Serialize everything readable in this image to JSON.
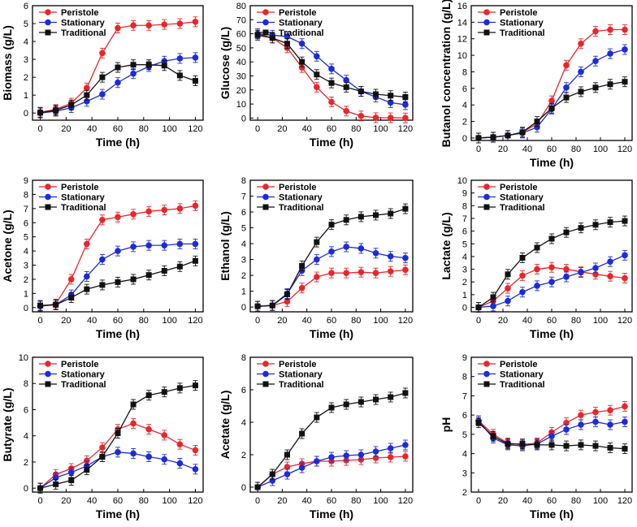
{
  "colors": {
    "Peristole": "#e8262b",
    "Stationary": "#1d2bd8",
    "Traditional": "#111111"
  },
  "chart_data": [
    {
      "type": "line",
      "ylabel": "Biomass (g/L)",
      "xlabel": "Time (h)",
      "ylim": [
        -0.4,
        6
      ],
      "yticks": [
        "0",
        "1",
        "2",
        "3",
        "4",
        "5",
        "6"
      ],
      "ytickvals": [
        0,
        1,
        2,
        3,
        4,
        5,
        6
      ],
      "xticks": [
        "0",
        "20",
        "40",
        "60",
        "80",
        "100",
        "120"
      ],
      "xtickvals": [
        0,
        20,
        40,
        60,
        80,
        100,
        120
      ],
      "xlim": [
        -6,
        126
      ],
      "legend": [
        "Peristole",
        "Stationary",
        "Traditional"
      ],
      "x": [
        0,
        12,
        24,
        36,
        48,
        60,
        72,
        84,
        96,
        108,
        120
      ],
      "series": [
        {
          "name": "Peristole",
          "values": [
            0.05,
            0.2,
            0.55,
            1.4,
            3.35,
            4.75,
            4.9,
            4.9,
            4.95,
            5.0,
            5.1
          ]
        },
        {
          "name": "Stationary",
          "values": [
            0.0,
            0.1,
            0.3,
            0.65,
            1.05,
            1.7,
            2.2,
            2.6,
            2.9,
            3.05,
            3.1
          ]
        },
        {
          "name": "Traditional",
          "values": [
            0.02,
            0.15,
            0.45,
            1.0,
            2.0,
            2.55,
            2.7,
            2.7,
            2.65,
            2.1,
            1.8
          ]
        }
      ]
    },
    {
      "type": "line",
      "ylabel": "Glucose (g/L)",
      "xlabel": "Time (h)",
      "ylim": [
        -1.5,
        80
      ],
      "yticks": [
        "0",
        "10",
        "20",
        "30",
        "40",
        "50",
        "60",
        "70",
        "80"
      ],
      "ytickvals": [
        0,
        10,
        20,
        30,
        40,
        50,
        60,
        70,
        80
      ],
      "xticks": [
        "0",
        "20",
        "40",
        "60",
        "80",
        "100",
        "120"
      ],
      "xtickvals": [
        0,
        20,
        40,
        60,
        80,
        100,
        120
      ],
      "xlim": [
        -6,
        126
      ],
      "legend": [
        "Peristole",
        "Stationary",
        "Traditional"
      ],
      "x": [
        0,
        12,
        24,
        36,
        48,
        60,
        72,
        84,
        96,
        108,
        120
      ],
      "series": [
        {
          "name": "Peristole",
          "values": [
            60,
            57,
            50,
            36,
            22,
            11.5,
            5,
            1.5,
            0.3,
            0.2,
            0.1
          ]
        },
        {
          "name": "Stationary",
          "values": [
            60,
            59,
            58,
            53,
            44,
            35,
            27,
            19,
            15,
            11,
            9.5
          ]
        },
        {
          "name": "Traditional",
          "values": [
            59,
            57,
            53,
            40,
            31,
            25,
            22,
            19,
            17,
            16,
            15
          ]
        }
      ]
    },
    {
      "type": "line",
      "ylabel": "Butanol concentration (g/L)",
      "xlabel": "Time (h)",
      "ylim": [
        -0.3,
        16
      ],
      "yticks": [
        "0",
        "2",
        "4",
        "6",
        "8",
        "10",
        "12",
        "14",
        "16"
      ],
      "ytickvals": [
        0,
        2,
        4,
        6,
        8,
        10,
        12,
        14,
        16
      ],
      "xticks": [
        "0",
        "20",
        "40",
        "60",
        "80",
        "100",
        "120"
      ],
      "xtickvals": [
        0,
        20,
        40,
        60,
        80,
        100,
        120
      ],
      "xlim": [
        -6,
        126
      ],
      "legend": [
        "Peristole",
        "Stationary",
        "Traditional"
      ],
      "x": [
        0,
        12,
        24,
        36,
        48,
        60,
        72,
        84,
        96,
        108,
        120
      ],
      "series": [
        {
          "name": "Peristole",
          "values": [
            0,
            0.1,
            0.3,
            0.7,
            1.7,
            4.5,
            8.8,
            11.4,
            12.9,
            13.1,
            13.1
          ]
        },
        {
          "name": "Stationary",
          "values": [
            0,
            0.1,
            0.3,
            0.6,
            1.3,
            3.5,
            6.1,
            8.0,
            9.3,
            10.2,
            10.7
          ]
        },
        {
          "name": "Traditional",
          "values": [
            0,
            0.1,
            0.3,
            0.7,
            2.0,
            3.6,
            4.9,
            5.6,
            6.1,
            6.5,
            6.8
          ]
        }
      ]
    },
    {
      "type": "line",
      "ylabel": "Acetone (g/L)",
      "xlabel": "Time (h)",
      "ylim": [
        -0.3,
        9
      ],
      "yticks": [
        "0",
        "1",
        "2",
        "3",
        "4",
        "5",
        "6",
        "7",
        "8",
        "9"
      ],
      "ytickvals": [
        0,
        1,
        2,
        3,
        4,
        5,
        6,
        7,
        8,
        9
      ],
      "xticks": [
        "0",
        "20",
        "40",
        "60",
        "80",
        "100",
        "120"
      ],
      "xtickvals": [
        0,
        20,
        40,
        60,
        80,
        100,
        120
      ],
      "xlim": [
        -6,
        126
      ],
      "legend": [
        "Peristole",
        "Stationary",
        "Traditional"
      ],
      "x": [
        0,
        12,
        24,
        36,
        48,
        60,
        72,
        84,
        96,
        108,
        120
      ],
      "series": [
        {
          "name": "Peristole",
          "values": [
            0.1,
            0.25,
            2.0,
            4.5,
            6.2,
            6.4,
            6.6,
            6.8,
            6.9,
            7.0,
            7.2
          ]
        },
        {
          "name": "Stationary",
          "values": [
            0.1,
            0.2,
            0.9,
            2.2,
            3.4,
            4.0,
            4.3,
            4.4,
            4.4,
            4.5,
            4.5
          ]
        },
        {
          "name": "Traditional",
          "values": [
            0.15,
            0.2,
            0.7,
            1.3,
            1.6,
            1.8,
            2.0,
            2.3,
            2.6,
            2.9,
            3.3
          ]
        }
      ]
    },
    {
      "type": "line",
      "ylabel": "Ethanol (g/L)",
      "xlabel": "Time (h)",
      "ylim": [
        -0.3,
        8
      ],
      "yticks": [
        "0",
        "1",
        "2",
        "3",
        "4",
        "5",
        "6",
        "7",
        "8"
      ],
      "ytickvals": [
        0,
        1,
        2,
        3,
        4,
        5,
        6,
        7,
        8
      ],
      "xticks": [
        "0",
        "20",
        "40",
        "60",
        "80",
        "100",
        "120"
      ],
      "xtickvals": [
        0,
        20,
        40,
        60,
        80,
        100,
        120
      ],
      "xlim": [
        -6,
        126
      ],
      "legend": [
        "Peristole",
        "Stationary",
        "Traditional"
      ],
      "x": [
        0,
        12,
        24,
        36,
        48,
        60,
        72,
        84,
        96,
        108,
        120
      ],
      "series": [
        {
          "name": "Peristole",
          "values": [
            0.05,
            0.1,
            0.35,
            1.2,
            1.9,
            2.15,
            2.15,
            2.2,
            2.15,
            2.25,
            2.35
          ]
        },
        {
          "name": "Stationary",
          "values": [
            0.05,
            0.1,
            0.85,
            2.3,
            3.0,
            3.5,
            3.8,
            3.7,
            3.4,
            3.2,
            3.1
          ]
        },
        {
          "name": "Traditional",
          "values": [
            0.05,
            0.1,
            0.8,
            2.6,
            4.1,
            5.2,
            5.5,
            5.7,
            5.8,
            5.9,
            6.2
          ]
        }
      ]
    },
    {
      "type": "line",
      "ylabel": "Lactate (g/L)",
      "xlabel": "Time (h)",
      "ylim": [
        -0.35,
        10
      ],
      "yticks": [
        "0",
        "1",
        "2",
        "3",
        "4",
        "5",
        "6",
        "7",
        "8",
        "9",
        "10"
      ],
      "ytickvals": [
        0,
        1,
        2,
        3,
        4,
        5,
        6,
        7,
        8,
        9,
        10
      ],
      "xticks": [
        "0",
        "20",
        "40",
        "60",
        "80",
        "100",
        "120"
      ],
      "xtickvals": [
        0,
        20,
        40,
        60,
        80,
        100,
        120
      ],
      "xlim": [
        -6,
        126
      ],
      "legend": [
        "Peristole",
        "Stationary",
        "Traditional"
      ],
      "x": [
        0,
        12,
        24,
        36,
        48,
        60,
        72,
        84,
        96,
        108,
        120
      ],
      "series": [
        {
          "name": "Peristole",
          "values": [
            0.0,
            0.5,
            1.5,
            2.5,
            3.0,
            3.15,
            3.0,
            2.8,
            2.6,
            2.45,
            2.3
          ]
        },
        {
          "name": "Stationary",
          "values": [
            0.0,
            0.1,
            0.5,
            1.2,
            1.7,
            2.0,
            2.4,
            2.75,
            3.1,
            3.6,
            4.1
          ]
        },
        {
          "name": "Traditional",
          "values": [
            0.0,
            0.8,
            2.6,
            3.9,
            4.7,
            5.4,
            5.9,
            6.25,
            6.5,
            6.7,
            6.8
          ]
        }
      ]
    },
    {
      "type": "line",
      "ylabel": "Butyrate (g/L)",
      "xlabel": "Time (h)",
      "ylim": [
        -0.3,
        10
      ],
      "yticks": [
        "0",
        "2",
        "4",
        "6",
        "8",
        "10"
      ],
      "ytickvals": [
        0,
        2,
        4,
        6,
        8,
        10
      ],
      "xticks": [
        "0",
        "20",
        "40",
        "60",
        "80",
        "100",
        "120"
      ],
      "xtickvals": [
        0,
        20,
        40,
        60,
        80,
        100,
        120
      ],
      "xlim": [
        -6,
        126
      ],
      "legend": [
        "Peristole",
        "Stationary",
        "Traditional"
      ],
      "x": [
        0,
        12,
        24,
        36,
        48,
        60,
        72,
        84,
        96,
        108,
        120
      ],
      "series": [
        {
          "name": "Peristole",
          "values": [
            0.0,
            1.05,
            1.5,
            2.1,
            3.1,
            4.5,
            4.95,
            4.5,
            4.05,
            3.35,
            2.9
          ]
        },
        {
          "name": "Stationary",
          "values": [
            0.0,
            0.8,
            1.2,
            1.7,
            2.4,
            2.75,
            2.65,
            2.4,
            2.2,
            1.9,
            1.45
          ]
        },
        {
          "name": "Traditional",
          "values": [
            0.0,
            0.3,
            0.6,
            1.4,
            2.4,
            4.2,
            6.4,
            7.1,
            7.35,
            7.65,
            7.85
          ]
        }
      ]
    },
    {
      "type": "line",
      "ylabel": "Acetate (g/L)",
      "xlabel": "Time (h)",
      "ylim": [
        -0.3,
        8
      ],
      "yticks": [
        "0",
        "2",
        "4",
        "6",
        "8"
      ],
      "ytickvals": [
        0,
        2,
        4,
        6,
        8
      ],
      "xticks": [
        "0",
        "20",
        "40",
        "60",
        "80",
        "100",
        "120"
      ],
      "xtickvals": [
        0,
        20,
        40,
        60,
        80,
        100,
        120
      ],
      "xlim": [
        -6,
        126
      ],
      "legend": [
        "Peristole",
        "Stationary",
        "Traditional"
      ],
      "x": [
        0,
        12,
        24,
        36,
        48,
        60,
        72,
        84,
        96,
        108,
        120
      ],
      "series": [
        {
          "name": "Peristole",
          "values": [
            0.0,
            0.8,
            1.25,
            1.45,
            1.6,
            1.6,
            1.65,
            1.7,
            1.8,
            1.85,
            1.9
          ]
        },
        {
          "name": "Stationary",
          "values": [
            0.0,
            0.4,
            0.8,
            1.2,
            1.6,
            1.85,
            1.95,
            2.0,
            2.2,
            2.4,
            2.6
          ]
        },
        {
          "name": "Traditional",
          "values": [
            0.0,
            0.8,
            2.0,
            3.3,
            4.3,
            4.9,
            5.1,
            5.25,
            5.4,
            5.55,
            5.8
          ]
        }
      ]
    },
    {
      "type": "line",
      "ylabel": "pH",
      "xlabel": "Time (h)",
      "ylim": [
        2,
        9
      ],
      "yticks": [
        "2",
        "3",
        "4",
        "5",
        "6",
        "7",
        "8",
        "9"
      ],
      "ytickvals": [
        2,
        3,
        4,
        5,
        6,
        7,
        8,
        9
      ],
      "xticks": [
        "0",
        "20",
        "40",
        "60",
        "80",
        "100",
        "120"
      ],
      "xtickvals": [
        0,
        20,
        40,
        60,
        80,
        100,
        120
      ],
      "xlim": [
        -6,
        126
      ],
      "legend": [
        "Peristole",
        "Stationary",
        "Traditional"
      ],
      "x": [
        0,
        12,
        24,
        36,
        48,
        60,
        72,
        84,
        96,
        108,
        120
      ],
      "series": [
        {
          "name": "Peristole",
          "values": [
            5.7,
            5.0,
            4.55,
            4.45,
            4.55,
            5.1,
            5.6,
            6.0,
            6.15,
            6.25,
            6.45
          ]
        },
        {
          "name": "Stationary",
          "values": [
            5.7,
            4.8,
            4.45,
            4.4,
            4.5,
            4.9,
            5.25,
            5.5,
            5.65,
            5.5,
            5.65
          ]
        },
        {
          "name": "Traditional",
          "values": [
            5.6,
            4.9,
            4.5,
            4.5,
            4.45,
            4.45,
            4.4,
            4.45,
            4.4,
            4.3,
            4.25
          ]
        }
      ]
    }
  ]
}
